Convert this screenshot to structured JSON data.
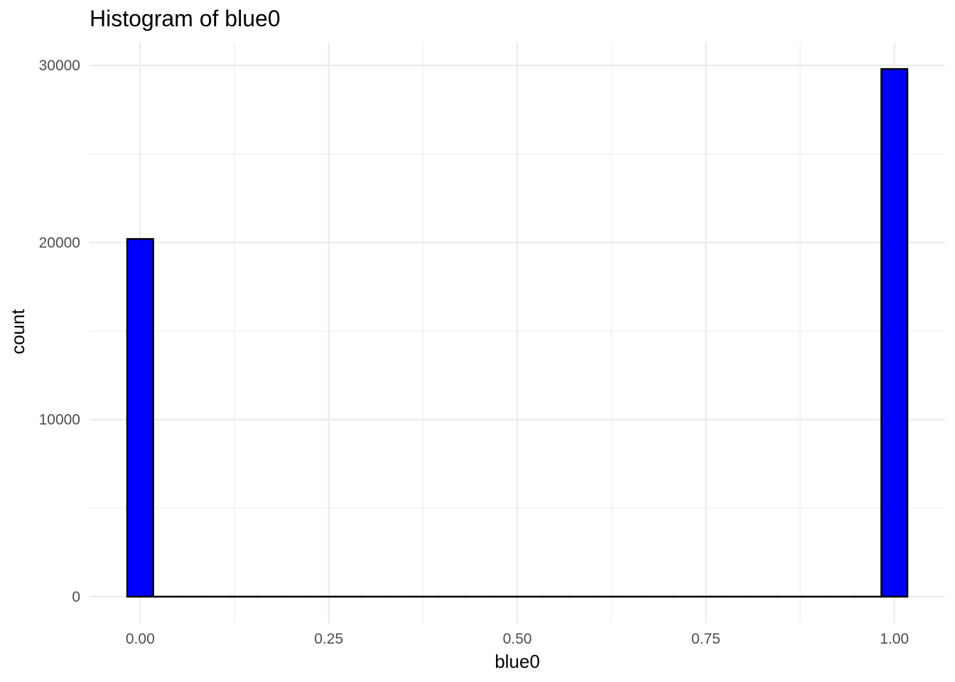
{
  "chart_data": {
    "type": "bar",
    "title": "Histogram of blue0",
    "xlabel": "blue0",
    "ylabel": "count",
    "bin_width": 0.0345,
    "bins": [
      {
        "x": 0.0,
        "count": 20200
      },
      {
        "x": 0.0345,
        "count": 0
      },
      {
        "x": 0.069,
        "count": 0
      },
      {
        "x": 0.1034,
        "count": 0
      },
      {
        "x": 0.1379,
        "count": 0
      },
      {
        "x": 0.1724,
        "count": 0
      },
      {
        "x": 0.2069,
        "count": 0
      },
      {
        "x": 0.2414,
        "count": 0
      },
      {
        "x": 0.2759,
        "count": 0
      },
      {
        "x": 0.3103,
        "count": 0
      },
      {
        "x": 0.3448,
        "count": 0
      },
      {
        "x": 0.3793,
        "count": 0
      },
      {
        "x": 0.4138,
        "count": 0
      },
      {
        "x": 0.4483,
        "count": 0
      },
      {
        "x": 0.4828,
        "count": 0
      },
      {
        "x": 0.5172,
        "count": 0
      },
      {
        "x": 0.5517,
        "count": 0
      },
      {
        "x": 0.5862,
        "count": 0
      },
      {
        "x": 0.6207,
        "count": 0
      },
      {
        "x": 0.6552,
        "count": 0
      },
      {
        "x": 0.6897,
        "count": 0
      },
      {
        "x": 0.7241,
        "count": 0
      },
      {
        "x": 0.7586,
        "count": 0
      },
      {
        "x": 0.7931,
        "count": 0
      },
      {
        "x": 0.8276,
        "count": 0
      },
      {
        "x": 0.8621,
        "count": 0
      },
      {
        "x": 0.8966,
        "count": 0
      },
      {
        "x": 0.931,
        "count": 0
      },
      {
        "x": 0.9655,
        "count": 0
      },
      {
        "x": 1.0,
        "count": 29800
      }
    ],
    "xlim": [
      -0.0672,
      1.0672
    ],
    "ylim": [
      -1490,
      31290
    ],
    "x_ticks": [
      0.0,
      0.25,
      0.5,
      0.75,
      1.0
    ],
    "x_tick_labels": [
      "0.00",
      "0.25",
      "0.50",
      "0.75",
      "1.00"
    ],
    "y_ticks": [
      0,
      10000,
      20000,
      30000
    ],
    "y_tick_labels": [
      "0",
      "10000",
      "20000",
      "30000"
    ],
    "grid": true,
    "fill_color": "#0000ff",
    "outline_color": "#000000",
    "grid_color": "#ebebeb",
    "legend": "none"
  }
}
